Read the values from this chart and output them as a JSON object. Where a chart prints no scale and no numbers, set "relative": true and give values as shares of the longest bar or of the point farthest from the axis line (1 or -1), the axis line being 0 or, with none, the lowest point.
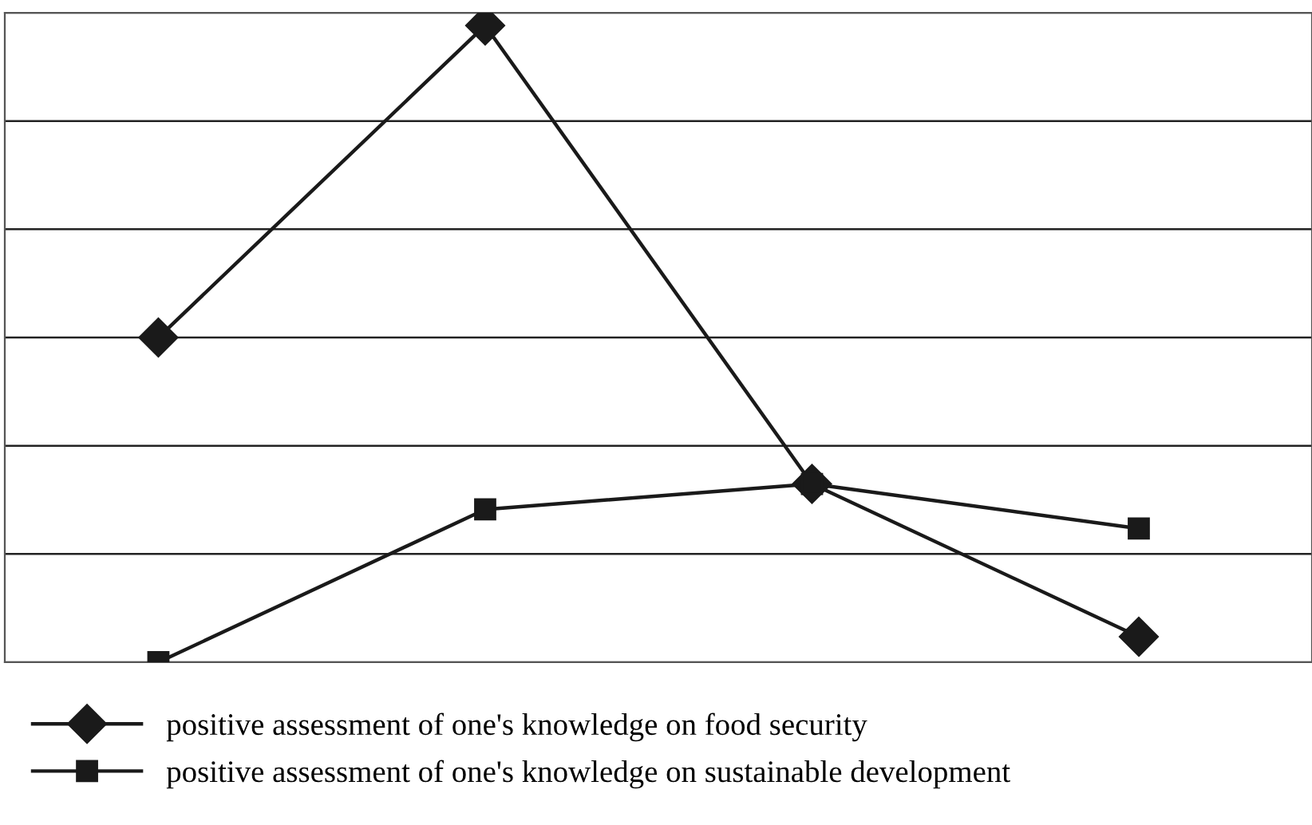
{
  "chart_data": {
    "type": "line",
    "relative": true,
    "categories": [
      null,
      null,
      null,
      null
    ],
    "series": [
      {
        "name": "positive assessment of one's knowledge on food security",
        "color": "#1a1a1a",
        "marker": "diamond",
        "values": [
          0.51,
          1,
          0.28,
          0.04
        ]
      },
      {
        "name": "positive assessment of one's knowledge on sustainable development",
        "color": "#1a1a1a",
        "marker": "square",
        "values": [
          0.0,
          0.24,
          0.28,
          0.21
        ]
      }
    ],
    "grid": "y",
    "legend": "bottom",
    "line_style": "solid"
  }
}
